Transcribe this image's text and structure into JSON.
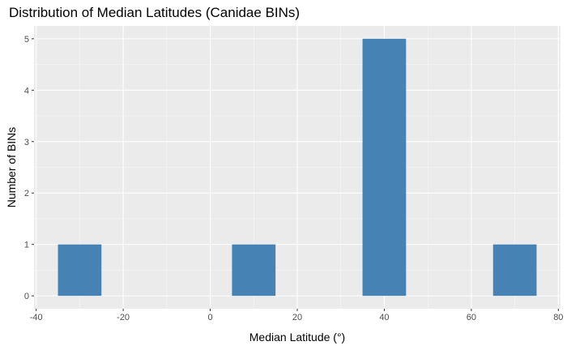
{
  "chart_data": {
    "type": "bar",
    "title": "Distribution of Median Latitudes (Canidae BINs)",
    "xlabel": "Median Latitude (°)",
    "ylabel": "Number of BINs",
    "bin_width": 10,
    "bins": [
      {
        "start": -35,
        "end": -25,
        "count": 1
      },
      {
        "start": 5,
        "end": 15,
        "count": 1
      },
      {
        "start": 35,
        "end": 45,
        "count": 5
      },
      {
        "start": 65,
        "end": 75,
        "count": 1
      }
    ],
    "x_ticks": [
      -40,
      -20,
      0,
      20,
      40,
      60,
      80
    ],
    "x_tick_labels": [
      "-40",
      "-20",
      "0",
      "20",
      "40",
      "60",
      "80"
    ],
    "y_ticks": [
      0,
      1,
      2,
      3,
      4,
      5
    ],
    "y_tick_labels": [
      "0",
      "1",
      "2",
      "3",
      "4",
      "5"
    ],
    "xlim": [
      -40.5,
      80.5
    ],
    "ylim": [
      -0.25,
      5.25
    ],
    "grid": true,
    "colors": {
      "bar": "#4682b4",
      "panel": "#ebebeb",
      "grid_major": "#ffffff"
    }
  }
}
